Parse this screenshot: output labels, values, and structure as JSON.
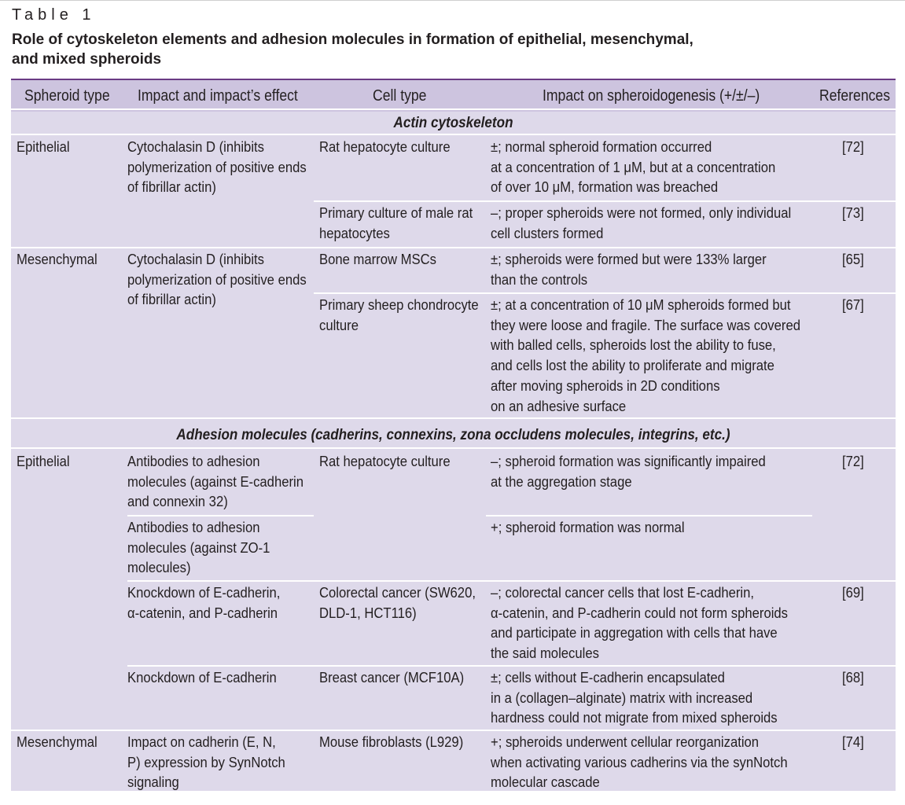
{
  "label": "Table 1",
  "title_line1": "Role of cytoskeleton elements and adhesion molecules in formation of epithelial, mesenchymal,",
  "title_line2": "and mixed spheroids",
  "headers": {
    "spheroid_type": "Spheroid type",
    "impact": "Impact and impact’s effect",
    "cell_type": "Cell type",
    "impact_on": "Impact on spheroidogenesis (+/±/–)",
    "references": "References"
  },
  "sections": {
    "actin": "Actin cytoskeleton",
    "adhesion": "Adhesion molecules (cadherins, connexins, zona occludens molecules, integrins, etc.)"
  },
  "rows": [
    {
      "spheroid": [
        "Epithelial"
      ],
      "impact": [
        "Cytochalasin D (inhibits",
        "polymerization of positive ends",
        "of fibrillar actin)"
      ],
      "cell": [
        "Rat hepatocyte culture"
      ],
      "effect": [
        "±; normal spheroid formation occurred",
        "at a concentration of 1 μM, but at a concentration",
        "of over 10 μM, formation was breached"
      ],
      "ref": "[72]"
    },
    {
      "spheroid": [],
      "impact": [],
      "cell": [
        "Primary culture of male rat",
        "hepatocytes"
      ],
      "effect": [
        "–; proper spheroids were not formed, only individual",
        "cell clusters formed"
      ],
      "ref": "[73]"
    },
    {
      "spheroid": [
        "Mesenchymal"
      ],
      "impact": [
        "Cytochalasin D (inhibits",
        "polymerization of positive ends",
        "of fibrillar actin)"
      ],
      "cell": [
        "Bone marrow MSCs"
      ],
      "effect": [
        "±; spheroids were formed but were 133% larger",
        "than the controls"
      ],
      "ref": "[65]"
    },
    {
      "spheroid": [],
      "impact": [],
      "cell": [
        "Primary sheep chondrocyte",
        "culture"
      ],
      "effect": [
        "±; at a concentration of 10 μM spheroids formed but",
        "they were loose and fragile. The surface was covered",
        "with balled cells, spheroids lost the ability to fuse,",
        "and cells lost the ability to proliferate and migrate",
        "after moving spheroids in 2D conditions",
        "on an adhesive surface"
      ],
      "ref": "[67]"
    },
    {
      "spheroid": [
        "Epithelial"
      ],
      "impact": [
        "Antibodies to adhesion",
        "molecules (against E-cadherin",
        "and connexin 32)"
      ],
      "cell": [
        "Rat hepatocyte culture"
      ],
      "effect": [
        "–; spheroid formation was significantly impaired",
        "at the aggregation stage"
      ],
      "ref": "[72]"
    },
    {
      "spheroid": [],
      "impact": [
        "Antibodies to adhesion",
        "molecules (against ZO-1",
        "molecules)"
      ],
      "cell": [],
      "effect": [
        "+; spheroid formation was normal"
      ],
      "ref": ""
    },
    {
      "spheroid": [],
      "impact": [
        "Knockdown of E-cadherin,",
        "α-catenin, and P-cadherin"
      ],
      "cell": [
        "Colorectal cancer (SW620,",
        "DLD-1, HCT116)"
      ],
      "effect": [
        "–; colorectal cancer cells that lost E-cadherin,",
        "α-catenin, and P-cadherin could not form spheroids",
        "and participate in aggregation with cells that have",
        "the said molecules"
      ],
      "ref": "[69]"
    },
    {
      "spheroid": [],
      "impact": [
        "Knockdown of E-cadherin"
      ],
      "cell": [
        "Breast cancer (MCF10A)"
      ],
      "effect": [
        "±; cells without E-cadherin encapsulated",
        "in a (collagen–alginate) matrix with increased",
        "hardness could not migrate from mixed spheroids"
      ],
      "ref": "[68]"
    },
    {
      "spheroid": [
        "Mesenchymal"
      ],
      "impact": [
        "Impact on cadherin (E, N,",
        "P) expression by SynNotch",
        "signaling"
      ],
      "cell": [
        "Mouse fibroblasts (L929)"
      ],
      "effect": [
        "+; spheroids underwent cellular reorganization",
        "when activating various cadherins via the synNotch",
        "molecular cascade"
      ],
      "ref": "[74]"
    }
  ]
}
